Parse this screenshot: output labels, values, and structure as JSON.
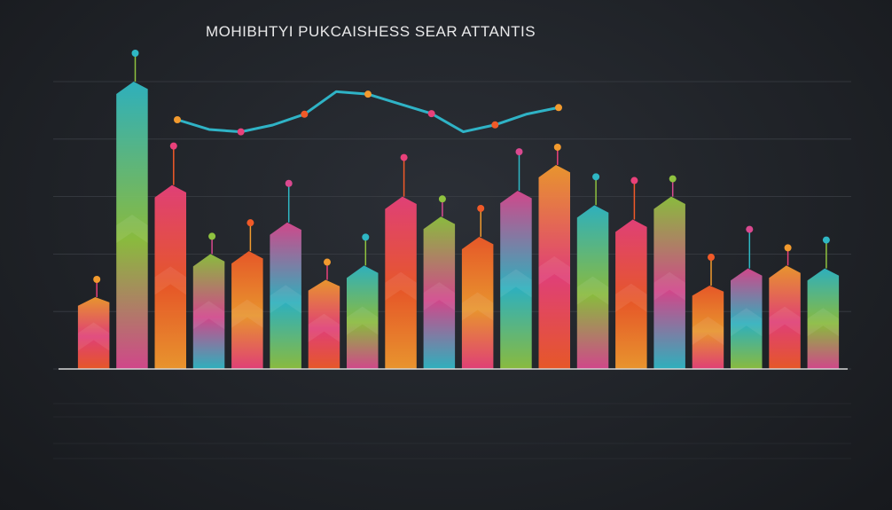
{
  "chart_data": {
    "type": "bar",
    "title": "MOHIBHTYI PUKCAISHESS SEAR ATTANTIS",
    "xlabel": "",
    "ylabel": "",
    "ylim": [
      0,
      100
    ],
    "grid": true,
    "colors": {
      "background": "#1f2227",
      "grid": "#3a3e45",
      "axis": "#d8d8d8",
      "trend_line": "#2fb3c6",
      "palette": [
        "#f29a2e",
        "#2fb7c4",
        "#e9417a",
        "#8fc23f",
        "#f05a28",
        "#d9498f"
      ]
    },
    "values": [
      25,
      100,
      64,
      40,
      41,
      51,
      31,
      36,
      60,
      53,
      46,
      62,
      71,
      57,
      52,
      60,
      29,
      35,
      36,
      35
    ]
  }
}
